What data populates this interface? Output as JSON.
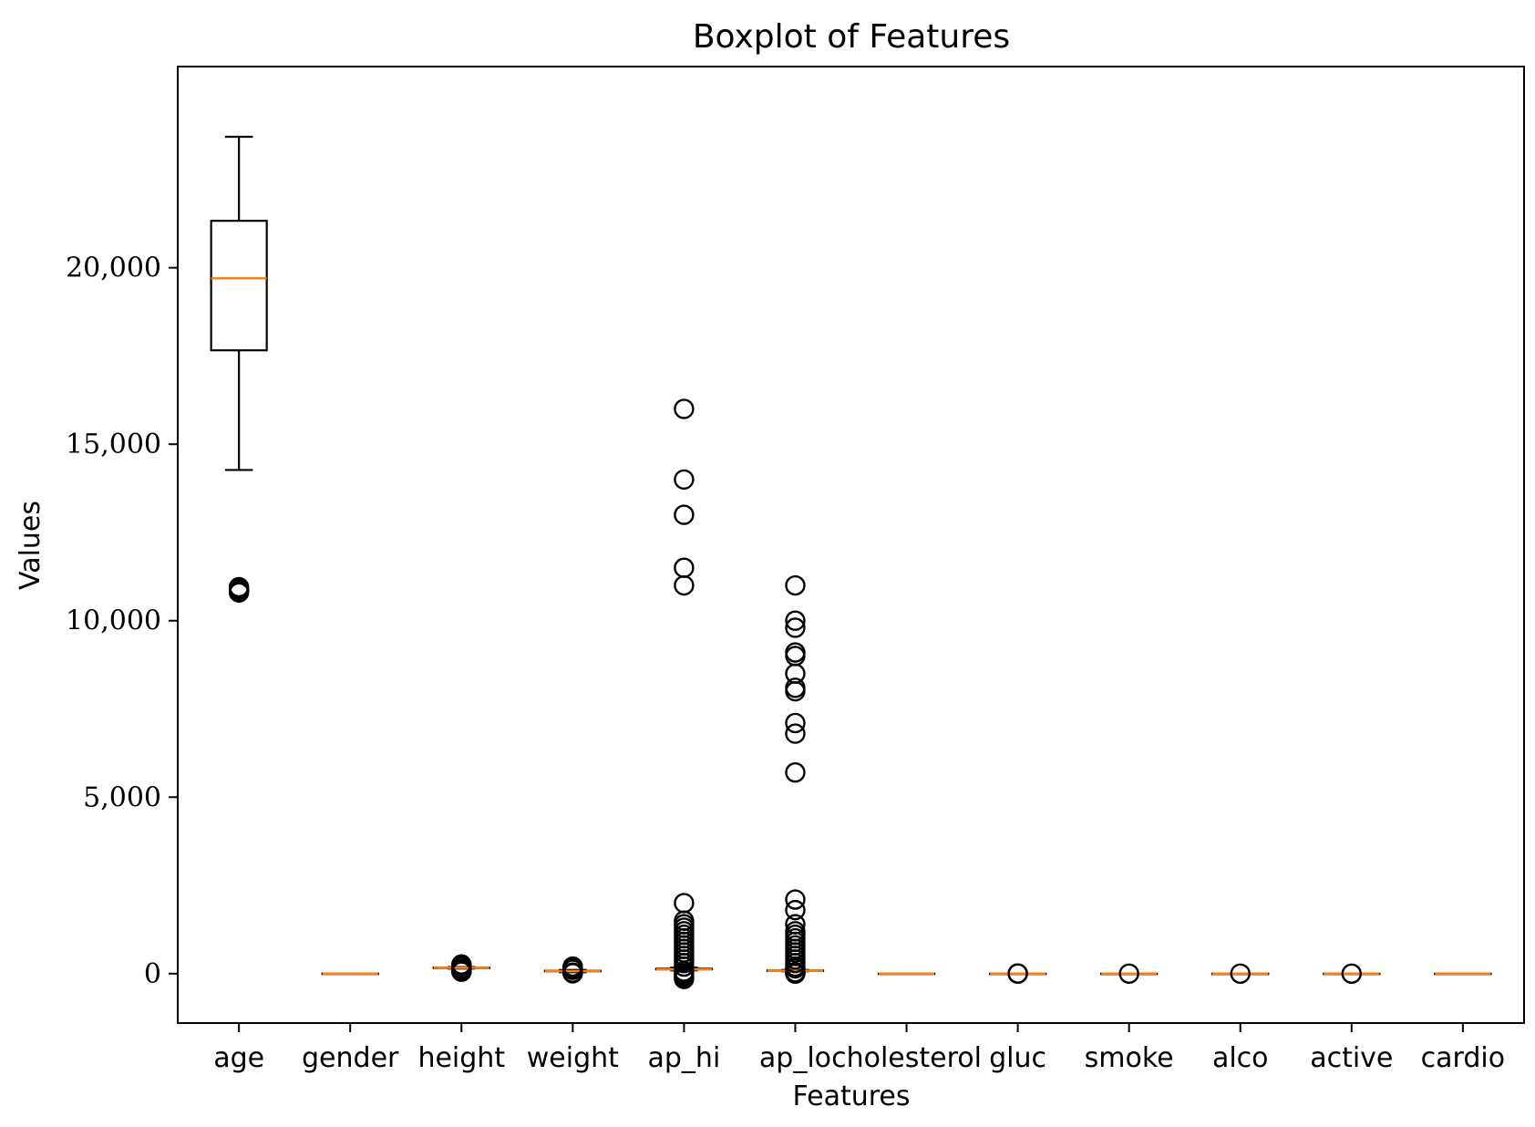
{
  "chart_data": {
    "type": "boxplot",
    "title": "Boxplot of Features",
    "xlabel": "Features",
    "ylabel": "Values",
    "ylim": [
      -1400,
      25700
    ],
    "yticks": [
      0,
      5000,
      10000,
      15000,
      20000
    ],
    "ytick_labels": [
      "0",
      "5,000",
      "10,000",
      "15,000",
      "20,000"
    ],
    "grid": false,
    "colors": {
      "box": "#000000",
      "median": "#ff7f0e"
    },
    "categories": [
      "age",
      "gender",
      "height",
      "weight",
      "ap_hi",
      "ap_lo",
      "cholesterol",
      "gluc",
      "smoke",
      "alco",
      "active",
      "cardio"
    ],
    "boxes": [
      {
        "name": "age",
        "whislo": 14270,
        "q1": 17660,
        "med": 19700,
        "q3": 21330,
        "whishi": 23710,
        "fliers": [
          10800,
          10850,
          10900,
          10950,
          10880
        ]
      },
      {
        "name": "gender",
        "whislo": 1,
        "q1": 1,
        "med": 1,
        "q3": 2,
        "whishi": 2,
        "fliers": []
      },
      {
        "name": "height",
        "whislo": 142,
        "q1": 159,
        "med": 165,
        "q3": 170,
        "whishi": 186,
        "fliers": [
          55,
          70,
          90,
          100,
          120,
          130,
          190,
          200,
          210,
          230,
          250,
          260
        ]
      },
      {
        "name": "weight",
        "whislo": 40,
        "q1": 65,
        "med": 72,
        "q3": 82,
        "whishi": 107,
        "fliers": [
          10,
          20,
          30,
          110,
          120,
          140,
          160,
          180,
          200
        ]
      },
      {
        "name": "ap_hi",
        "whislo": 90,
        "q1": 120,
        "med": 120,
        "q3": 140,
        "whishi": 170,
        "fliers": [
          -150,
          -100,
          -50,
          0,
          60,
          200,
          300,
          400,
          500,
          600,
          700,
          800,
          900,
          1000,
          1100,
          1200,
          1300,
          1400,
          1500,
          2000,
          11000,
          11500,
          13000,
          14000,
          16000
        ]
      },
      {
        "name": "ap_lo",
        "whislo": 65,
        "q1": 80,
        "med": 80,
        "q3": 90,
        "whishi": 105,
        "fliers": [
          0,
          10,
          20,
          40,
          150,
          200,
          300,
          400,
          500,
          600,
          700,
          800,
          900,
          1000,
          1100,
          1200,
          1400,
          1800,
          2100,
          5700,
          6800,
          7100,
          8000,
          8100,
          8500,
          9000,
          9100,
          9800,
          10000,
          11000
        ]
      },
      {
        "name": "cholesterol",
        "whislo": 1,
        "q1": 1,
        "med": 1,
        "q3": 2,
        "whishi": 3,
        "fliers": []
      },
      {
        "name": "gluc",
        "whislo": 1,
        "q1": 1,
        "med": 1,
        "q3": 1,
        "whishi": 1,
        "fliers": [
          2,
          3
        ]
      },
      {
        "name": "smoke",
        "whislo": 0,
        "q1": 0,
        "med": 0,
        "q3": 0,
        "whishi": 0,
        "fliers": [
          1
        ]
      },
      {
        "name": "alco",
        "whislo": 0,
        "q1": 0,
        "med": 0,
        "q3": 0,
        "whishi": 0,
        "fliers": [
          1
        ]
      },
      {
        "name": "active",
        "whislo": 1,
        "q1": 1,
        "med": 1,
        "q3": 1,
        "whishi": 1,
        "fliers": [
          0
        ]
      },
      {
        "name": "cardio",
        "whislo": 0,
        "q1": 0,
        "med": 0,
        "q3": 1,
        "whishi": 1,
        "fliers": []
      }
    ]
  }
}
